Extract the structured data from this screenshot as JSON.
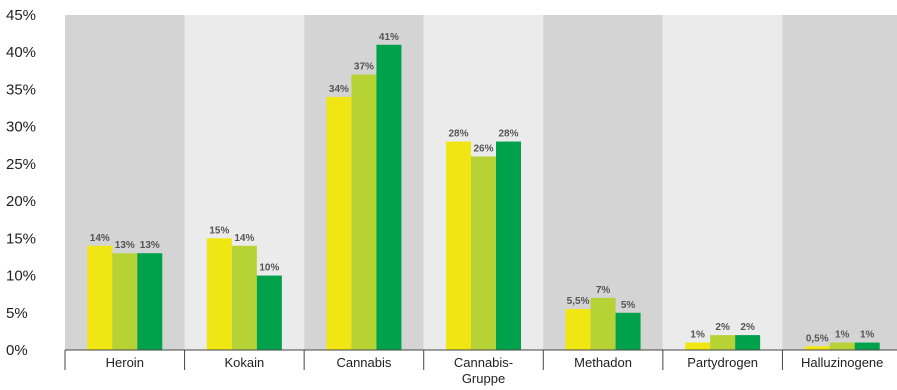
{
  "chart_data": {
    "type": "bar",
    "categories": [
      "Heroin",
      "Kokain",
      "Cannabis",
      "Cannabis-\nGruppe",
      "Methadon",
      "Partydrogen",
      "Halluzinogene"
    ],
    "series": [
      {
        "values": [
          14,
          15,
          34,
          28,
          5.5,
          1,
          0.5
        ],
        "color": "#f0e614"
      },
      {
        "values": [
          13,
          14,
          37,
          26,
          7,
          2,
          1
        ],
        "color": "#b6d235"
      },
      {
        "values": [
          13,
          10,
          41,
          28,
          5,
          2,
          1
        ],
        "color": "#00a14b"
      }
    ],
    "data_labels": [
      [
        "14%",
        "15%",
        "34%",
        "28%",
        "5,5%",
        "1%",
        "0,5%"
      ],
      [
        "13%",
        "14%",
        "37%",
        "26%",
        "7%",
        "2%",
        "1%"
      ],
      [
        "13%",
        "10%",
        "41%",
        "28%",
        "5%",
        "2%",
        "1%"
      ]
    ],
    "yticks": [
      "0%",
      "5%",
      "10%",
      "15%",
      "20%",
      "25%",
      "30%",
      "35%",
      "40%",
      "45%"
    ],
    "ylim": [
      0,
      45
    ],
    "grid": false,
    "legend": "none",
    "background_bands": [
      "#d4d4d4",
      "#ebebeb"
    ]
  }
}
